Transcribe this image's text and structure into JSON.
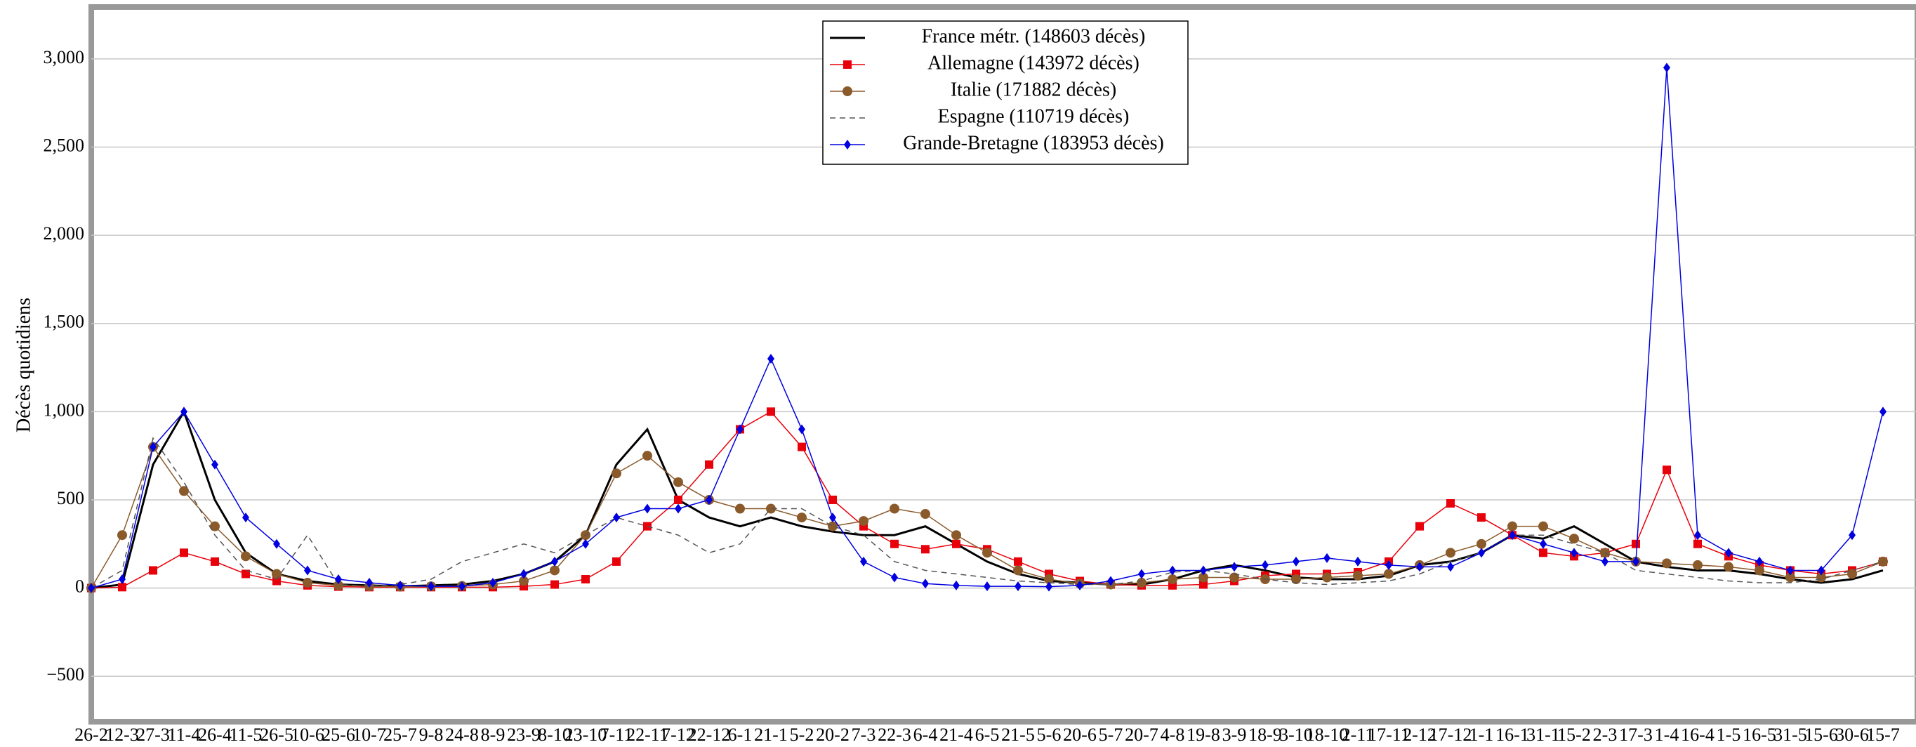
{
  "chart_data": {
    "type": "line",
    "y_label": "Décès quotidiens",
    "categories": [
      "26-2",
      "12-3",
      "27-3",
      "11-4",
      "26-4",
      "11-5",
      "26-5",
      "10-6",
      "25-6",
      "10-7",
      "25-7",
      "9-8",
      "24-8",
      "8-9",
      "23-9",
      "8-10",
      "23-10",
      "7-11",
      "22-11",
      "7-12",
      "22-12",
      "6-1",
      "21-1",
      "5-2",
      "20-2",
      "7-3",
      "22-3",
      "6-4",
      "21-4",
      "6-5",
      "21-5",
      "5-6",
      "20-6",
      "5-7",
      "20-7",
      "4-8",
      "19-8",
      "3-9",
      "18-9",
      "3-10",
      "18-10",
      "2-11",
      "17-11",
      "2-12",
      "17-12",
      "1-1",
      "16-1",
      "31-1",
      "15-2",
      "2-3",
      "17-3",
      "1-4",
      "16-4",
      "1-5",
      "16-5",
      "31-5",
      "15-6",
      "30-6",
      "15-7"
    ],
    "series": [
      {
        "name": "France métr. (148603 décès)",
        "color": "#000000",
        "marker": "none",
        "dash": "none",
        "values": [
          0,
          20,
          700,
          1000,
          500,
          200,
          80,
          40,
          20,
          15,
          10,
          15,
          20,
          40,
          80,
          150,
          300,
          700,
          900,
          500,
          400,
          350,
          400,
          350,
          320,
          300,
          300,
          350,
          250,
          150,
          80,
          40,
          30,
          20,
          20,
          50,
          100,
          130,
          100,
          60,
          50,
          50,
          70,
          130,
          150,
          200,
          300,
          280,
          350,
          250,
          150,
          120,
          100,
          100,
          80,
          50,
          30,
          50,
          100
        ]
      },
      {
        "name": "Allemagne (143972 décès)",
        "color": "#e8000b",
        "marker": "square",
        "dash": "none",
        "values": [
          0,
          5,
          100,
          200,
          150,
          80,
          40,
          15,
          8,
          5,
          5,
          5,
          5,
          5,
          10,
          20,
          50,
          150,
          350,
          500,
          700,
          900,
          1000,
          800,
          500,
          350,
          250,
          220,
          250,
          220,
          150,
          80,
          40,
          20,
          15,
          15,
          20,
          40,
          70,
          80,
          80,
          90,
          150,
          350,
          480,
          400,
          300,
          200,
          180,
          200,
          250,
          670,
          250,
          180,
          130,
          100,
          80,
          100,
          150
        ]
      },
      {
        "name": "Italie (171882 décès)",
        "color": "#8b5a2b",
        "marker": "circle",
        "dash": "none",
        "values": [
          0,
          300,
          800,
          550,
          350,
          180,
          80,
          30,
          15,
          10,
          8,
          10,
          12,
          20,
          40,
          100,
          300,
          650,
          750,
          600,
          500,
          450,
          450,
          400,
          350,
          380,
          450,
          420,
          300,
          200,
          100,
          50,
          25,
          20,
          30,
          50,
          60,
          60,
          50,
          50,
          60,
          70,
          80,
          130,
          200,
          250,
          350,
          350,
          280,
          200,
          150,
          140,
          130,
          120,
          100,
          60,
          60,
          80,
          150
        ]
      },
      {
        "name": "Espagne (110719 décès)",
        "color": "#555555",
        "marker": "none",
        "dash": "dashed",
        "values": [
          0,
          100,
          850,
          600,
          300,
          100,
          50,
          300,
          20,
          10,
          20,
          50,
          150,
          200,
          250,
          200,
          300,
          400,
          350,
          300,
          200,
          250,
          450,
          450,
          350,
          300,
          150,
          100,
          80,
          60,
          40,
          30,
          20,
          20,
          40,
          90,
          100,
          80,
          50,
          30,
          20,
          30,
          40,
          80,
          150,
          200,
          300,
          300,
          250,
          200,
          100,
          80,
          60,
          40,
          30,
          30,
          50,
          100,
          150
        ]
      },
      {
        "name": "Grande-Bretagne (183953 décès)",
        "color": "#0000e0",
        "marker": "diamond",
        "dash": "none",
        "values": [
          0,
          50,
          800,
          1000,
          700,
          400,
          250,
          100,
          50,
          30,
          15,
          10,
          10,
          30,
          80,
          150,
          250,
          400,
          450,
          450,
          500,
          900,
          1300,
          900,
          400,
          150,
          60,
          25,
          15,
          10,
          10,
          8,
          15,
          40,
          80,
          100,
          100,
          120,
          130,
          150,
          170,
          150,
          130,
          120,
          120,
          200,
          300,
          250,
          200,
          150,
          150,
          2950,
          300,
          200,
          150,
          100,
          100,
          300,
          1000
        ]
      }
    ],
    "ylim": [
      -734,
      3270
    ],
    "yticks": [
      {
        "value": -500,
        "label": "−500"
      },
      0,
      500,
      {
        "value": 1000,
        "label": "1,000"
      },
      {
        "value": 1500,
        "label": "1,500"
      },
      {
        "value": 2000,
        "label": "2,000"
      },
      {
        "value": 2500,
        "label": "2,500"
      },
      {
        "value": 3000,
        "label": "3,000"
      }
    ],
    "grid": true,
    "legend": "top"
  }
}
